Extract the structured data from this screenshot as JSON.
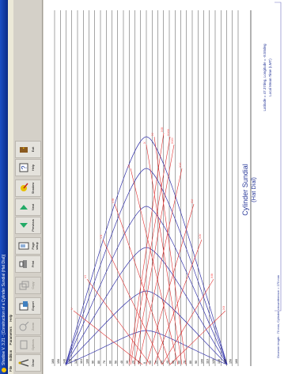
{
  "window": {
    "title": "Shadow V. 3.21 - [Construction of a Cylinder Sundial (Hat Dial)]"
  },
  "menu": [
    "File",
    "Edition",
    "Parameters",
    "Help"
  ],
  "toolbar": {
    "buttons": [
      {
        "label": "Draw",
        "icon": "compass-icon",
        "enabled": true
      },
      {
        "label": "Options",
        "icon": "options-icon",
        "enabled": false
      },
      {
        "label": "Zoom",
        "icon": "zoom-icon",
        "enabled": false
      },
      {
        "label": "Export",
        "icon": "export-icon",
        "enabled": true
      },
      {
        "label": "Copy",
        "icon": "copy-icon",
        "enabled": false
      },
      {
        "label": "Print",
        "icon": "printer-icon",
        "enabled": true
      },
      {
        "label": "Page setup",
        "icon": "page-setup-icon",
        "enabled": true
      },
      {
        "label": "Previous",
        "icon": "previous-icon",
        "enabled": true
      },
      {
        "label": "Next",
        "icon": "next-icon",
        "enabled": true
      },
      {
        "label": "Shadow",
        "icon": "shadow-icon",
        "enabled": true
      },
      {
        "label": "Help",
        "icon": "help-icon",
        "enabled": true
      },
      {
        "label": "Exit",
        "icon": "exit-icon",
        "enabled": true
      }
    ]
  },
  "dial": {
    "title": "Cylinder Sundial",
    "subtitle": "(Hat Dial)",
    "location": "Latitude = 47.37deg, Longitude = -8.55deg",
    "time_type": "Local Mean Time (LMT)",
    "footer": "Gnomon length : 70 mm, Cylinder circumference = 270 mm",
    "axis_labels": [
      "160",
      "150",
      "140",
      "130",
      "120",
      "110",
      "100",
      "90",
      "80",
      "70",
      "60",
      "50",
      "40",
      "30",
      "20",
      "10",
      "0",
      "10",
      "20",
      "30",
      "40",
      "50",
      "60",
      "70",
      "80",
      "90",
      "100",
      "110",
      "120",
      "130",
      "140",
      "150",
      "160"
    ],
    "hour_labels_top": [
      "V",
      "VI",
      "VII",
      "VIII",
      "IX",
      "X",
      "XI"
    ],
    "hour_labels_bottom": [
      "XII",
      "XIII",
      "XIV",
      "XV",
      "XVI",
      "XVII",
      "XVIII",
      "XIX"
    ],
    "colors": {
      "grid": "#000000",
      "date_curves": "#3333aa",
      "hour_lines": "#e03030",
      "labels": "#ff4040"
    }
  }
}
